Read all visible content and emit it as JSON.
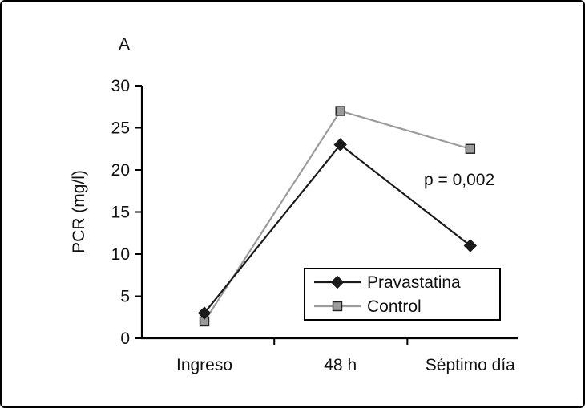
{
  "chart_data": {
    "type": "line",
    "title": "",
    "panel_label": "A",
    "categories": [
      "Ingreso",
      "48 h",
      "Séptimo día"
    ],
    "series": [
      {
        "name": "Pravastatina",
        "marker": "diamond",
        "color": "#1a1a1a",
        "values": [
          3,
          23,
          11
        ]
      },
      {
        "name": "Control",
        "marker": "square",
        "color": "#9b9b9b",
        "values": [
          2,
          27,
          22.5
        ]
      }
    ],
    "xlabel": "",
    "ylabel": "PCR (mg/l)",
    "ylim": [
      0,
      30
    ],
    "ytick_step": 5,
    "grid": false,
    "legend_position": "inside-bottom-center",
    "annotation": {
      "text": "p = 0,002"
    }
  }
}
